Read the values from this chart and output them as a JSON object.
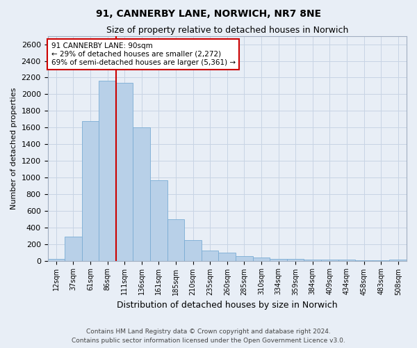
{
  "title": "91, CANNERBY LANE, NORWICH, NR7 8NE",
  "subtitle": "Size of property relative to detached houses in Norwich",
  "xlabel": "Distribution of detached houses by size in Norwich",
  "ylabel": "Number of detached properties",
  "footer_line1": "Contains HM Land Registry data © Crown copyright and database right 2024.",
  "footer_line2": "Contains public sector information licensed under the Open Government Licence v3.0.",
  "annotation_line1": "91 CANNERBY LANE: 90sqm",
  "annotation_line2": "← 29% of detached houses are smaller (2,272)",
  "annotation_line3": "69% of semi-detached houses are larger (5,361) →",
  "bar_color": "#b8d0e8",
  "bar_edge_color": "#7aacd4",
  "vline_color": "#cc0000",
  "annotation_box_edge_color": "#cc0000",
  "annotation_box_face_color": "#ffffff",
  "grid_color": "#c8d4e4",
  "background_color": "#e8eef6",
  "categories": [
    "12sqm",
    "37sqm",
    "61sqm",
    "86sqm",
    "111sqm",
    "136sqm",
    "161sqm",
    "185sqm",
    "210sqm",
    "235sqm",
    "260sqm",
    "285sqm",
    "310sqm",
    "334sqm",
    "359sqm",
    "384sqm",
    "409sqm",
    "434sqm",
    "458sqm",
    "483sqm",
    "508sqm"
  ],
  "values": [
    20,
    290,
    1680,
    2160,
    2140,
    1600,
    970,
    500,
    245,
    120,
    100,
    55,
    40,
    25,
    20,
    15,
    10,
    10,
    5,
    5,
    10
  ],
  "ylim": [
    0,
    2700
  ],
  "yticks": [
    0,
    200,
    400,
    600,
    800,
    1000,
    1200,
    1400,
    1600,
    1800,
    2000,
    2200,
    2400,
    2600
  ],
  "vline_bin_index": 3.5,
  "title_fontsize": 10,
  "subtitle_fontsize": 9,
  "xlabel_fontsize": 9,
  "ylabel_fontsize": 8,
  "tick_fontsize": 8,
  "xtick_fontsize": 7,
  "annotation_fontsize": 7.5,
  "footer_fontsize": 6.5
}
